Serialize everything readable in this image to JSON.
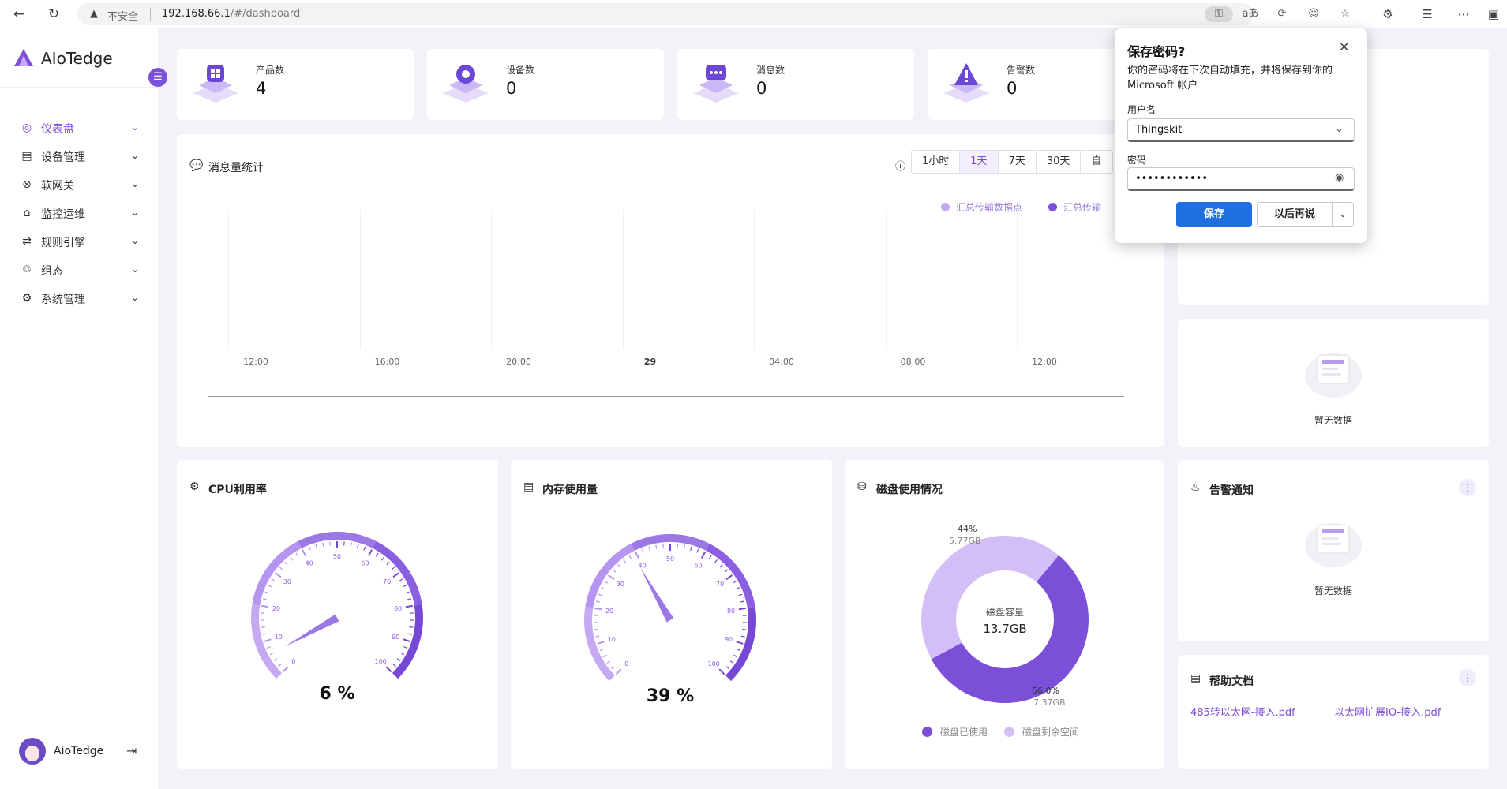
{
  "browser": {
    "warning_text": "不安全",
    "url_host": "192.168.66.1",
    "url_path": "/#/dashboard"
  },
  "app": {
    "name": "AIoTedge"
  },
  "sidebar": {
    "items": [
      {
        "label": "仪表盘",
        "icon": "dashboard-icon",
        "active": true
      },
      {
        "label": "设备管理",
        "icon": "device-icon"
      },
      {
        "label": "软网关",
        "icon": "gateway-icon"
      },
      {
        "label": "监控运维",
        "icon": "monitor-icon"
      },
      {
        "label": "规则引擎",
        "icon": "rule-icon"
      },
      {
        "label": "组态",
        "icon": "scada-icon"
      },
      {
        "label": "系统管理",
        "icon": "settings-icon"
      }
    ],
    "user": "AioTedge"
  },
  "stats": [
    {
      "label": "产品数",
      "value": "4"
    },
    {
      "label": "设备数",
      "value": "0"
    },
    {
      "label": "消息数",
      "value": "0"
    },
    {
      "label": "告警数",
      "value": "0"
    }
  ],
  "message_chart": {
    "title": "消息量统计",
    "ranges": [
      "1小时",
      "1天",
      "7天",
      "30天",
      "自"
    ],
    "selected_range": "1天",
    "legend": [
      "汇总传输数据点",
      "汇总传输"
    ],
    "colors": {
      "series1": "#c4a8f3",
      "series2": "#7b4fd8"
    }
  },
  "chart_data": {
    "type": "line",
    "title": "消息量统计",
    "x_ticks": [
      "12:00",
      "16:00",
      "20:00",
      "29",
      "04:00",
      "08:00",
      "12:00"
    ],
    "series": [
      {
        "name": "汇总传输数据点",
        "values": []
      },
      {
        "name": "汇总传输",
        "values": []
      }
    ],
    "grid": true,
    "legend_position": "top-right"
  },
  "cpu": {
    "title": "CPU利用率",
    "value": 6,
    "display": "6 %",
    "ticks": [
      "0",
      "10",
      "20",
      "30",
      "40",
      "50",
      "60",
      "70",
      "80",
      "90",
      "100"
    ]
  },
  "memory": {
    "title": "内存使用量",
    "value": 39,
    "display": "39 %",
    "ticks": [
      "0",
      "10",
      "20",
      "30",
      "40",
      "50",
      "60",
      "70",
      "80",
      "90",
      "100"
    ]
  },
  "disk": {
    "title": "磁盘使用情况",
    "center_label": "磁盘容量",
    "center_value": "13.7GB",
    "free_pct": "44%",
    "free_size": "5.77GB",
    "used_pct": "56.0%",
    "used_size": "7.37GB",
    "free_fraction": 0.44,
    "used_fraction": 0.56,
    "legend_used": "磁盘已使用",
    "legend_free": "磁盘剩余空间",
    "colors": {
      "used": "#7b4fd8",
      "free": "#d3bef7"
    }
  },
  "empty_text": "暂无数据",
  "alarm": {
    "title": "告警通知"
  },
  "docs": {
    "title": "帮助文档",
    "links": [
      "485转以太网-接入.pdf",
      "以太网扩展IO-接入.pdf"
    ]
  },
  "password_popup": {
    "title": "保存密码?",
    "description": "你的密码将在下次自动填充，并将保存到你的 Microsoft 帐户",
    "username_label": "用户名",
    "username_value": "Thingskit",
    "password_label": "密码",
    "password_value": "••••••••••••",
    "save_label": "保存",
    "later_label": "以后再说"
  }
}
